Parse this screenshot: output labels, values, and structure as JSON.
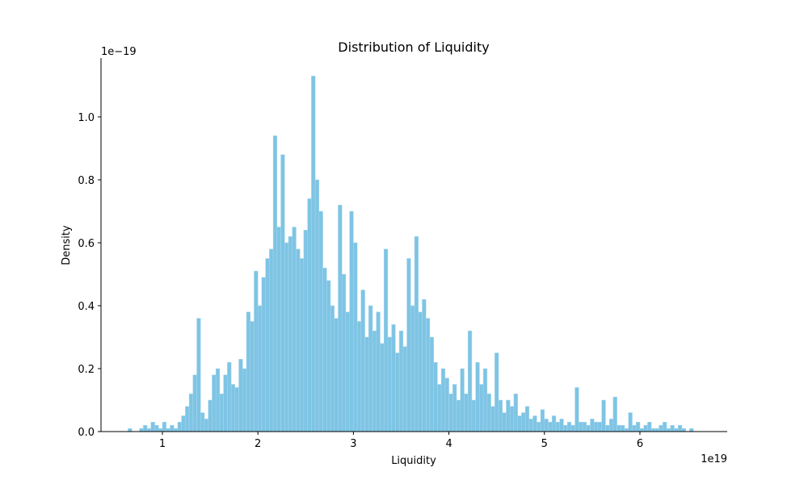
{
  "chart_data": {
    "type": "histogram",
    "title": "Distribution of Liquidity",
    "x_label": "Liquidity",
    "y_label": "Density",
    "x_offset_label": "1e19",
    "y_offset_label": "1e−19",
    "color": "#7ec4e4",
    "bins": [
      0.6,
      0.64,
      0.68,
      0.72,
      0.76,
      0.8,
      0.84,
      0.88,
      0.92,
      0.96,
      1.0,
      1.04,
      1.08,
      1.12,
      1.16,
      1.2,
      1.24,
      1.28,
      1.32,
      1.36,
      1.4,
      1.44,
      1.48,
      1.52,
      1.56,
      1.6,
      1.64,
      1.68,
      1.72,
      1.76,
      1.8,
      1.84,
      1.88,
      1.92,
      1.96,
      2.0,
      2.04,
      2.08,
      2.12,
      2.16,
      2.2,
      2.24,
      2.28,
      2.32,
      2.36,
      2.4,
      2.44,
      2.48,
      2.52,
      2.56,
      2.6,
      2.64,
      2.68,
      2.72,
      2.76,
      2.8,
      2.84,
      2.88,
      2.92,
      2.96,
      3.0,
      3.04,
      3.08,
      3.12,
      3.16,
      3.2,
      3.24,
      3.28,
      3.32,
      3.36,
      3.4,
      3.44,
      3.48,
      3.52,
      3.56,
      3.6,
      3.64,
      3.68,
      3.72,
      3.76,
      3.8,
      3.84,
      3.88,
      3.92,
      3.96,
      4.0,
      4.04,
      4.08,
      4.12,
      4.16,
      4.2,
      4.24,
      4.28,
      4.32,
      4.36,
      4.4,
      4.44,
      4.48,
      4.52,
      4.56,
      4.6,
      4.64,
      4.68,
      4.72,
      4.76,
      4.8,
      4.84,
      4.88,
      4.92,
      4.96,
      5.0,
      5.04,
      5.08,
      5.12,
      5.16,
      5.2,
      5.24,
      5.28,
      5.32,
      5.36,
      5.4,
      5.44,
      5.48,
      5.52,
      5.56,
      5.6,
      5.64,
      5.68,
      5.72,
      5.76,
      5.8,
      5.84,
      5.88,
      5.92,
      5.96,
      6.0,
      6.04,
      6.08,
      6.12,
      6.16,
      6.2,
      6.24,
      6.28,
      6.32,
      6.36,
      6.4,
      6.44,
      6.48,
      6.52,
      6.56,
      6.6
    ],
    "values": [
      0,
      0.01,
      0,
      0,
      0.01,
      0.02,
      0.01,
      0.03,
      0.02,
      0.01,
      0.03,
      0.01,
      0.02,
      0.01,
      0.03,
      0.05,
      0.08,
      0.12,
      0.18,
      0.36,
      0.06,
      0.04,
      0.1,
      0.18,
      0.2,
      0.12,
      0.18,
      0.22,
      0.15,
      0.14,
      0.23,
      0.2,
      0.38,
      0.35,
      0.51,
      0.4,
      0.49,
      0.55,
      0.58,
      0.94,
      0.65,
      0.88,
      0.6,
      0.62,
      0.65,
      0.58,
      0.55,
      0.64,
      0.74,
      1.13,
      0.8,
      0.7,
      0.52,
      0.48,
      0.4,
      0.36,
      0.72,
      0.5,
      0.38,
      0.7,
      0.6,
      0.35,
      0.45,
      0.3,
      0.4,
      0.32,
      0.38,
      0.28,
      0.58,
      0.3,
      0.34,
      0.25,
      0.32,
      0.27,
      0.55,
      0.4,
      0.62,
      0.38,
      0.42,
      0.36,
      0.3,
      0.22,
      0.15,
      0.2,
      0.17,
      0.12,
      0.15,
      0.1,
      0.2,
      0.12,
      0.32,
      0.1,
      0.22,
      0.15,
      0.2,
      0.12,
      0.08,
      0.25,
      0.1,
      0.06,
      0.1,
      0.08,
      0.12,
      0.05,
      0.06,
      0.08,
      0.04,
      0.05,
      0.03,
      0.07,
      0.04,
      0.03,
      0.05,
      0.03,
      0.04,
      0.02,
      0.03,
      0.02,
      0.14,
      0.03,
      0.03,
      0.02,
      0.04,
      0.03,
      0.03,
      0.1,
      0.02,
      0.04,
      0.11,
      0.02,
      0.02,
      0.01,
      0.06,
      0.02,
      0.03,
      0.01,
      0.02,
      0.03,
      0.01,
      0.01,
      0.02,
      0.03,
      0.01,
      0.02,
      0.01,
      0.02,
      0.01,
      0,
      0.01,
      0
    ],
    "xlim": [
      0.357,
      6.914
    ],
    "ylim": [
      0,
      1.187
    ],
    "xticks": [
      1,
      2,
      3,
      4,
      5,
      6
    ],
    "yticks": [
      {
        "value": 0,
        "label": "0.0"
      },
      {
        "value": 0.2,
        "label": "0.2"
      },
      {
        "value": 0.4,
        "label": "0.4"
      },
      {
        "value": 0.6,
        "label": "0.6"
      },
      {
        "value": 0.8,
        "label": "0.8"
      },
      {
        "value": 1.0,
        "label": "1.0"
      }
    ]
  }
}
